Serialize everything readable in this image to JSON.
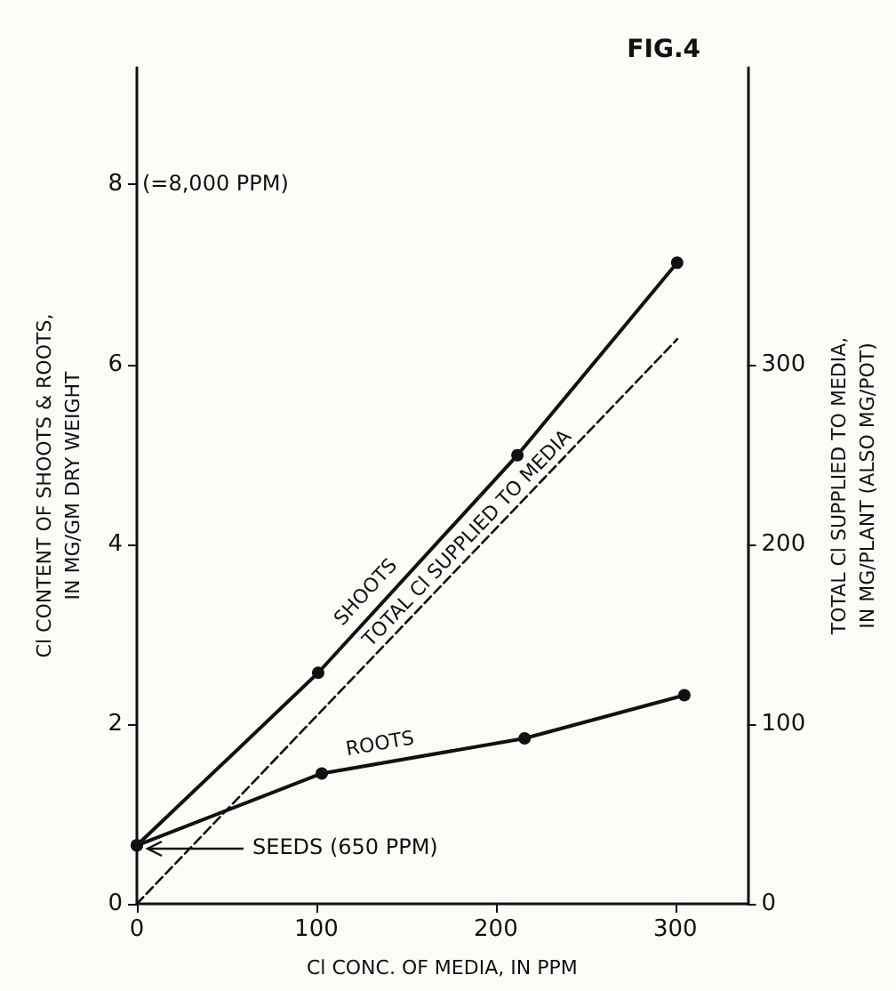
{
  "chart_data": {
    "type": "line",
    "title": "FIG.4",
    "xlabel": "Cl CONC. OF MEDIA, IN PPM",
    "ylabel": "Cl CONTENT OF SHOOTS & ROOTS,\nIN MG/GM DRY WEIGHT",
    "y2label": "TOTAL Cl SUPPLIED TO MEDIA,\nIN MG/PLANT (ALSO MG/POT)",
    "xlim": [
      0,
      340
    ],
    "xticks": [
      0,
      100,
      200,
      300
    ],
    "ylim": [
      0,
      9.3
    ],
    "yticks": [
      0,
      2,
      4,
      6,
      8
    ],
    "y2lim": [
      0,
      465
    ],
    "y2ticks": [
      0,
      100,
      200,
      300
    ],
    "grid": false,
    "legend": false,
    "marker": "circle",
    "line_style": "solid",
    "series": [
      {
        "name": "SHOOTS",
        "color": "#111111",
        "x": [
          0,
          101,
          212,
          301
        ],
        "values": [
          0.65,
          2.57,
          4.99,
          7.13
        ]
      },
      {
        "name": "ROOTS",
        "color": "#111111",
        "x": [
          0,
          103,
          216,
          305
        ],
        "values": [
          0.65,
          1.45,
          1.84,
          2.32
        ]
      },
      {
        "name": "TOTAL Cl SUPPLIED TO MEDIA",
        "color": "#111111",
        "axis": "y2",
        "marker": "none",
        "line_style": "dashed",
        "x": [
          0,
          301
        ],
        "values": [
          0,
          314
        ]
      }
    ],
    "annotations": [
      "(=8,000 PPM)",
      "SEEDS (650 PPM)"
    ]
  }
}
